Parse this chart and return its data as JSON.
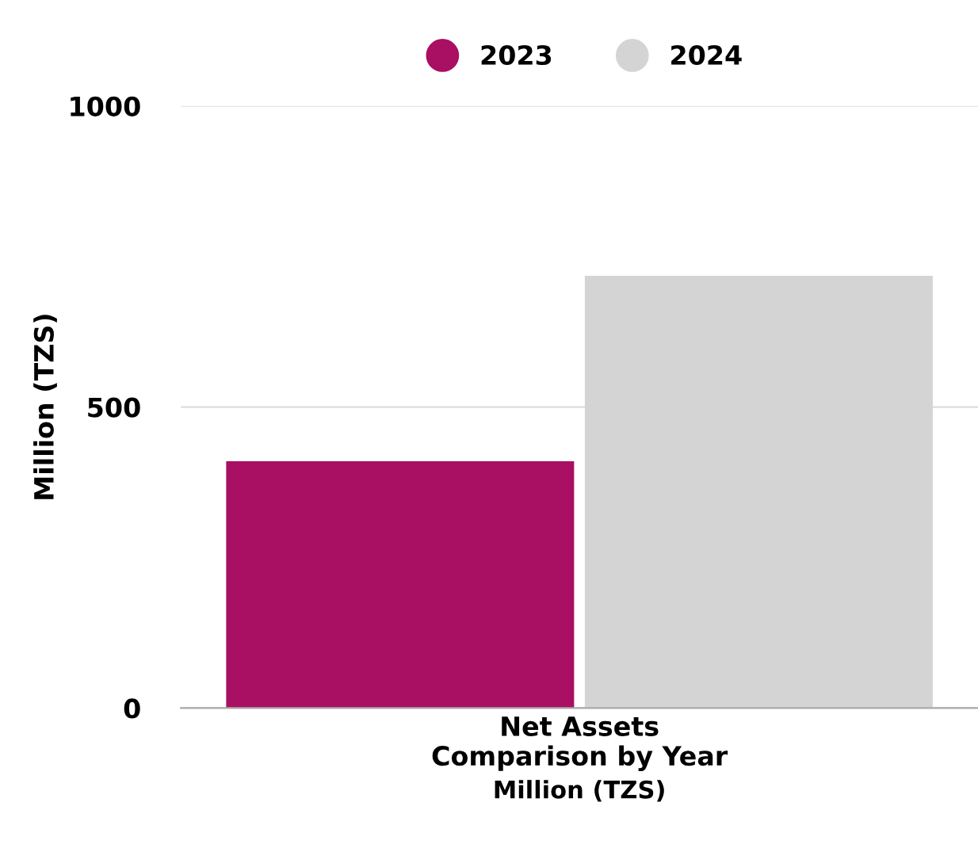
{
  "chart_data": {
    "type": "bar",
    "categories": [
      "Net Assets\nComparison by Year"
    ],
    "series": [
      {
        "name": "2023",
        "color": "#a90f62",
        "values": [
          410
        ]
      },
      {
        "name": "2024",
        "color": "#d4d4d4",
        "values": [
          718
        ]
      }
    ],
    "xlabel": "Million (TZS)",
    "ylabel": "Million (TZS)",
    "ylim": [
      0,
      1000
    ],
    "yticks": [
      0,
      500,
      1000
    ],
    "grid": "y",
    "legend": "top"
  }
}
